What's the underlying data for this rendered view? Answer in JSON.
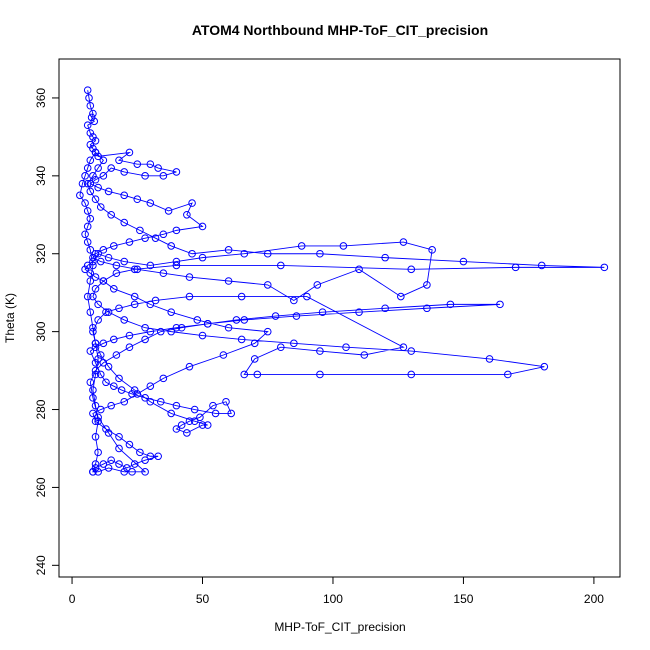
{
  "chart_data": {
    "type": "scatter",
    "title": "ATOM4 Northbound MHP-ToF_CIT_precision",
    "xlabel": "MHP-ToF_CIT_precision",
    "ylabel": "Theta (K)",
    "xlim": [
      -5,
      210
    ],
    "ylim": [
      237,
      370
    ],
    "xticks": [
      0,
      50,
      100,
      150,
      200
    ],
    "yticks": [
      240,
      260,
      280,
      300,
      320,
      340,
      360
    ],
    "grid": false,
    "legend": "none",
    "style": "lines-and-open-circles",
    "color": "#0000ff",
    "series": [
      {
        "points": [
          [
            6,
            362
          ],
          [
            6.5,
            360
          ],
          [
            7,
            358
          ],
          [
            8,
            356
          ],
          [
            7.5,
            355
          ],
          [
            8.5,
            354
          ],
          [
            6,
            353
          ],
          [
            7,
            351
          ],
          [
            8,
            350
          ],
          [
            9,
            349
          ],
          [
            7,
            348
          ],
          [
            8,
            347
          ],
          [
            9,
            346
          ],
          [
            10,
            345
          ],
          [
            22,
            346
          ],
          [
            18,
            344
          ],
          [
            25,
            343
          ],
          [
            30,
            343
          ],
          [
            33,
            342
          ],
          [
            40,
            341
          ],
          [
            35,
            340
          ],
          [
            28,
            340
          ],
          [
            20,
            341
          ],
          [
            15,
            342
          ],
          [
            12,
            340
          ],
          [
            9,
            339
          ],
          [
            7,
            338
          ],
          [
            10,
            337
          ],
          [
            14,
            336
          ],
          [
            20,
            335
          ],
          [
            25,
            334
          ],
          [
            30,
            333
          ],
          [
            37,
            331
          ],
          [
            46,
            333
          ],
          [
            44,
            330
          ],
          [
            50,
            327
          ],
          [
            40,
            326
          ],
          [
            35,
            325
          ],
          [
            28,
            324
          ],
          [
            22,
            323
          ],
          [
            16,
            322
          ],
          [
            12,
            321
          ],
          [
            9,
            320
          ],
          [
            8,
            319
          ],
          [
            11,
            318
          ],
          [
            17,
            317
          ],
          [
            25,
            316
          ],
          [
            35,
            315
          ],
          [
            45,
            314
          ],
          [
            60,
            313
          ],
          [
            75,
            312
          ],
          [
            85,
            308
          ],
          [
            94,
            312
          ],
          [
            110,
            316
          ],
          [
            126,
            309
          ],
          [
            136,
            312
          ],
          [
            138,
            321
          ],
          [
            127,
            323
          ],
          [
            104,
            322
          ],
          [
            88,
            322
          ],
          [
            66,
            320
          ],
          [
            50,
            319
          ],
          [
            40,
            318
          ],
          [
            30,
            317
          ],
          [
            20,
            318
          ],
          [
            14,
            319
          ],
          [
            10,
            320
          ],
          [
            8,
            318
          ],
          [
            6,
            317
          ],
          [
            5,
            316
          ],
          [
            7,
            315
          ],
          [
            9,
            314
          ],
          [
            12,
            313
          ],
          [
            16,
            311
          ],
          [
            24,
            309
          ],
          [
            30,
            307
          ],
          [
            38,
            305
          ],
          [
            48,
            303
          ],
          [
            60,
            301
          ],
          [
            75,
            300
          ],
          [
            70,
            297
          ],
          [
            58,
            294
          ],
          [
            45,
            291
          ],
          [
            35,
            288
          ],
          [
            30,
            286
          ],
          [
            25,
            284
          ],
          [
            20,
            282
          ],
          [
            15,
            281
          ],
          [
            11,
            280
          ],
          [
            8,
            279
          ],
          [
            9,
            277
          ],
          [
            13,
            275
          ],
          [
            18,
            273
          ],
          [
            22,
            271
          ],
          [
            26,
            269
          ],
          [
            30,
            268
          ],
          [
            33,
            268
          ],
          [
            28,
            267
          ],
          [
            24,
            266
          ],
          [
            21,
            265
          ],
          [
            18,
            266
          ],
          [
            15,
            267
          ],
          [
            12,
            266
          ],
          [
            9,
            265
          ],
          [
            8,
            264
          ],
          [
            10,
            264
          ],
          [
            14,
            265
          ],
          [
            20,
            264
          ],
          [
            23,
            264
          ],
          [
            28,
            264
          ],
          [
            18,
            270
          ],
          [
            14,
            274
          ],
          [
            10,
            278
          ],
          [
            8,
            283
          ],
          [
            7,
            287
          ],
          [
            9,
            290
          ],
          [
            12,
            292
          ],
          [
            17,
            294
          ],
          [
            22,
            296
          ],
          [
            28,
            298
          ],
          [
            34,
            300
          ],
          [
            42,
            301
          ],
          [
            52,
            302
          ],
          [
            63,
            303
          ],
          [
            78,
            304
          ],
          [
            96,
            305
          ],
          [
            120,
            306
          ],
          [
            145,
            307
          ],
          [
            164,
            307
          ],
          [
            136,
            306
          ],
          [
            110,
            305
          ],
          [
            86,
            304
          ],
          [
            66,
            303
          ],
          [
            52,
            302
          ],
          [
            40,
            301
          ],
          [
            30,
            300
          ],
          [
            22,
            299
          ],
          [
            16,
            298
          ],
          [
            12,
            297
          ],
          [
            9,
            296
          ],
          [
            7,
            295
          ],
          [
            9,
            292
          ],
          [
            11,
            289
          ],
          [
            13,
            287
          ],
          [
            16,
            286
          ],
          [
            19,
            285
          ],
          [
            23,
            284
          ],
          [
            28,
            283
          ],
          [
            34,
            282
          ],
          [
            40,
            281
          ],
          [
            47,
            280
          ],
          [
            55,
            279
          ],
          [
            61,
            279
          ],
          [
            59,
            282
          ],
          [
            54,
            281
          ],
          [
            49,
            278
          ],
          [
            45,
            277
          ],
          [
            42,
            276
          ],
          [
            40,
            275
          ],
          [
            44,
            274
          ],
          [
            50,
            276
          ],
          [
            52,
            276
          ],
          [
            47,
            277
          ],
          [
            38,
            279
          ],
          [
            30,
            282
          ],
          [
            24,
            285
          ],
          [
            18,
            288
          ],
          [
            14,
            291
          ],
          [
            11,
            294
          ],
          [
            9,
            297
          ],
          [
            8,
            300
          ],
          [
            10,
            303
          ],
          [
            13,
            305
          ],
          [
            18,
            306
          ],
          [
            24,
            307
          ],
          [
            32,
            308
          ],
          [
            45,
            309
          ],
          [
            65,
            309
          ],
          [
            90,
            309
          ],
          [
            127,
            296
          ],
          [
            112,
            294
          ],
          [
            95,
            295
          ],
          [
            80,
            296
          ],
          [
            70,
            293
          ],
          [
            66,
            289
          ],
          [
            71,
            289
          ],
          [
            95,
            289
          ],
          [
            130,
            289
          ],
          [
            167,
            289
          ],
          [
            181,
            291
          ],
          [
            160,
            293
          ],
          [
            130,
            295
          ],
          [
            105,
            296
          ],
          [
            85,
            297
          ],
          [
            65,
            298
          ],
          [
            50,
            299
          ],
          [
            38,
            300
          ],
          [
            28,
            301
          ],
          [
            20,
            303
          ],
          [
            14,
            305
          ],
          [
            10,
            307
          ],
          [
            8,
            309
          ],
          [
            9,
            311
          ],
          [
            12,
            313
          ],
          [
            17,
            315
          ],
          [
            24,
            316
          ],
          [
            40,
            317
          ],
          [
            80,
            317
          ],
          [
            130,
            316
          ],
          [
            170,
            316.5
          ],
          [
            204,
            316.5
          ],
          [
            180,
            317
          ],
          [
            150,
            318
          ],
          [
            120,
            319
          ],
          [
            95,
            320
          ],
          [
            75,
            320
          ],
          [
            60,
            321
          ],
          [
            46,
            320
          ],
          [
            38,
            322
          ],
          [
            32,
            324
          ],
          [
            26,
            326
          ],
          [
            20,
            328
          ],
          [
            15,
            330
          ],
          [
            11,
            332
          ],
          [
            9,
            334
          ],
          [
            7,
            336
          ],
          [
            6,
            338
          ],
          [
            8,
            340
          ],
          [
            10,
            342
          ],
          [
            12,
            344
          ],
          [
            9,
            346
          ],
          [
            7,
            344
          ],
          [
            6,
            342
          ],
          [
            5,
            340
          ],
          [
            4,
            338
          ],
          [
            3,
            335
          ],
          [
            5,
            333
          ],
          [
            6,
            331
          ],
          [
            7,
            329
          ],
          [
            6,
            327
          ],
          [
            5,
            325
          ],
          [
            6,
            323
          ],
          [
            7,
            321
          ],
          [
            8,
            317
          ],
          [
            7,
            313
          ],
          [
            6,
            309
          ],
          [
            7,
            305
          ],
          [
            8,
            301
          ],
          [
            9,
            297
          ],
          [
            10,
            293
          ],
          [
            9,
            289
          ],
          [
            8,
            285
          ],
          [
            9,
            281
          ],
          [
            10,
            277
          ],
          [
            9,
            273
          ],
          [
            10,
            269
          ],
          [
            9,
            266
          ],
          [
            8,
            264
          ]
        ]
      }
    ]
  }
}
